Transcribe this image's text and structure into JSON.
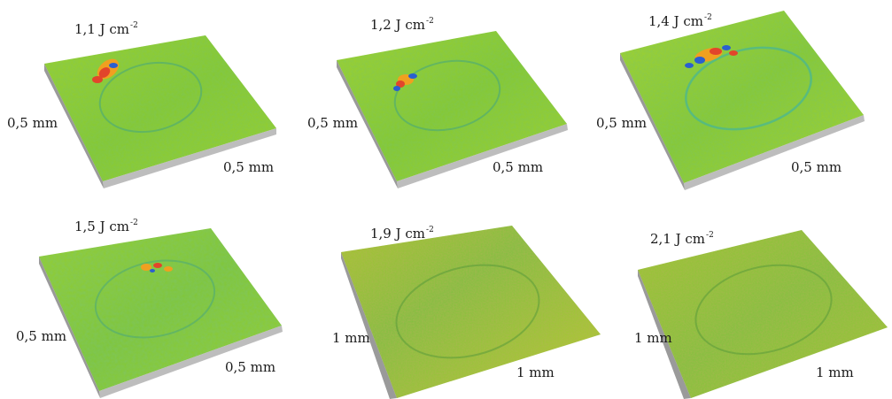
{
  "panels": [
    {
      "fluence": "1,1 J cm",
      "exponent": "-2",
      "side_label": "0,5 mm",
      "bottom_label": "0,5 mm"
    },
    {
      "fluence": "1,2 J cm",
      "exponent": "-2",
      "side_label": "0,5 mm",
      "bottom_label": "0,5 mm"
    },
    {
      "fluence": "1,4 J cm",
      "exponent": "-2",
      "side_label": "0,5 mm",
      "bottom_label": "0,5 mm"
    },
    {
      "fluence": "1,5 J cm",
      "exponent": "-2",
      "side_label": "0,5 mm",
      "bottom_label": "0,5 mm"
    },
    {
      "fluence": "1,9 J cm",
      "exponent": "-2",
      "side_label": "1 mm",
      "bottom_label": "1 mm"
    },
    {
      "fluence": "2,1 J cm",
      "exponent": "-2",
      "side_label": "1 mm",
      "bottom_label": "1 mm"
    }
  ],
  "colors": {
    "surface": "#8fce2a",
    "surface_dark": "#6cbf3a",
    "edge": "#bdbdbd",
    "edge_dark": "#8a8a8a",
    "crater": "#3fb4a0",
    "spot_red": "#e2452b",
    "spot_orange": "#f0a020",
    "spot_blue": "#2a5fd0"
  }
}
